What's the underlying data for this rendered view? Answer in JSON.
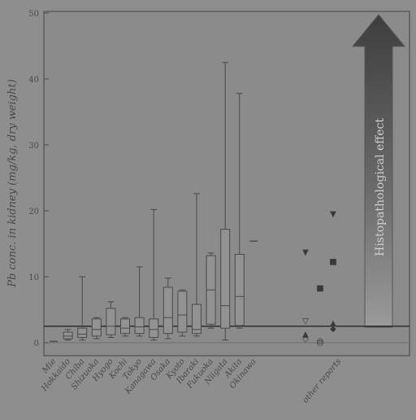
{
  "chart_data": {
    "type": "box",
    "title": "",
    "ylabel": "Pb conc. in kidney (mg/kg, dry weight)",
    "xlabel": "",
    "ylim": [
      0,
      50
    ],
    "yticks": [
      0,
      10,
      20,
      30,
      40,
      50
    ],
    "grid": false,
    "categories": [
      "Mie",
      "Hokkaido",
      "Chiba",
      "Shizuoka",
      "Hyogo",
      "Kochi",
      "Tokyo",
      "Kanagawa",
      "Osaka",
      "Kyoto",
      "Ibaraki",
      "Fukuoka",
      "Niigata",
      "Akita",
      "Okinawa"
    ],
    "boxes": [
      {
        "category": "Mie",
        "median": 0.2
      },
      {
        "category": "Hokkaido",
        "min": 0.4,
        "q1": 0.6,
        "median": 1.0,
        "q3": 1.6,
        "max": 2.0
      },
      {
        "category": "Chiba",
        "min": 0.4,
        "q1": 0.8,
        "median": 1.3,
        "q3": 2.2,
        "max": 10.0
      },
      {
        "category": "Shizuoka",
        "min": 0.6,
        "q1": 1.0,
        "median": 2.0,
        "q3": 3.6,
        "max": 3.8
      },
      {
        "category": "Hyogo",
        "min": 0.8,
        "q1": 1.2,
        "median": 2.5,
        "q3": 5.2,
        "max": 6.2
      },
      {
        "category": "Kochi",
        "min": 1.0,
        "q1": 1.4,
        "median": 2.2,
        "q3": 3.6,
        "max": 3.8
      },
      {
        "category": "Tokyo",
        "min": 1.0,
        "q1": 1.4,
        "median": 2.4,
        "q3": 3.8,
        "max": 11.5
      },
      {
        "category": "Kanagawa",
        "min": 0.4,
        "q1": 0.8,
        "median": 2.0,
        "q3": 3.6,
        "max": 20.2
      },
      {
        "category": "Osaka",
        "min": 0.6,
        "q1": 1.4,
        "median": 3.8,
        "q3": 8.4,
        "max": 9.8
      },
      {
        "category": "Kyoto",
        "min": 1.0,
        "q1": 1.6,
        "median": 4.2,
        "q3": 7.8,
        "max": 8.0
      },
      {
        "category": "Ibaraki",
        "min": 1.0,
        "q1": 1.4,
        "median": 2.0,
        "q3": 5.8,
        "max": 22.6
      },
      {
        "category": "Fukuoka",
        "min": 2.2,
        "q1": 2.8,
        "median": 8.0,
        "q3": 13.2,
        "max": 13.6
      },
      {
        "category": "Niigata",
        "min": 0.4,
        "q1": 2.2,
        "median": 5.6,
        "q3": 17.2,
        "max": 42.5
      },
      {
        "category": "Akita",
        "min": 2.2,
        "q1": 2.6,
        "median": 7.0,
        "q3": 13.4,
        "max": 37.8
      },
      {
        "category": "Okinawa",
        "median": 15.4
      }
    ],
    "other_reports": {
      "label": "other reports",
      "points": [
        {
          "col": 1,
          "symbol": "▽",
          "value": 3.4
        },
        {
          "col": 1,
          "symbol": "▼",
          "value": 13.8
        },
        {
          "col": 1,
          "symbol": "▲",
          "value": 1.4
        },
        {
          "col": 1,
          "symbol": "◇",
          "value": 0.7
        },
        {
          "col": 2,
          "symbol": "■",
          "value": 8.4
        },
        {
          "col": 2,
          "symbol": "◎",
          "value": 0.4
        },
        {
          "col": 2,
          "symbol": "○",
          "value": 0.1
        },
        {
          "col": 3,
          "symbol": "▼",
          "value": 19.6
        },
        {
          "col": 3,
          "symbol": "■",
          "value": 12.4
        },
        {
          "col": 3,
          "symbol": "▲",
          "value": 3.1
        },
        {
          "col": 3,
          "symbol": "◆",
          "value": 2.2
        }
      ]
    },
    "threshold": {
      "value": 2.5
    },
    "annotation": "Histopathological effect"
  }
}
